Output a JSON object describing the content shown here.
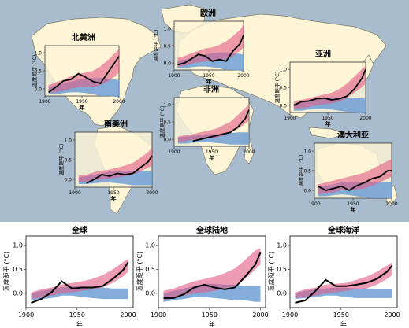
{
  "colors": {
    "ocean": "#a9bccd",
    "land": "#fdf5d6",
    "coast": "#7a7a6a",
    "natural_band": "#6e9fd6",
    "combined_band": "#e35a86",
    "observed": "#000000"
  },
  "chart_data": [
    {
      "type": "line",
      "id": "north-america",
      "title": "北美洲",
      "xlabel": "年",
      "ylabel": "温度距平 (°C)",
      "xlim": [
        1900,
        2000
      ],
      "ylim": [
        -0.2,
        1.2
      ],
      "xticks": [
        "1900",
        "1950",
        "2000"
      ],
      "yticks": [
        "0.0",
        "0.5",
        "1.0"
      ],
      "x": [
        1905,
        1915,
        1925,
        1935,
        1945,
        1955,
        1965,
        1975,
        1985,
        1995,
        2000
      ],
      "observed": [
        -0.1,
        0.05,
        0.22,
        0.26,
        0.42,
        0.32,
        0.2,
        0.15,
        0.45,
        0.75,
        0.9
      ],
      "natural": [
        [
          -0.15,
          0.05
        ],
        [
          -0.15,
          0.1
        ],
        [
          -0.12,
          0.15
        ],
        [
          -0.1,
          0.2
        ],
        [
          -0.1,
          0.25
        ],
        [
          -0.12,
          0.28
        ],
        [
          -0.15,
          0.3
        ],
        [
          -0.2,
          0.3
        ],
        [
          -0.2,
          0.28
        ],
        [
          -0.22,
          0.26
        ],
        [
          -0.25,
          0.24
        ]
      ],
      "combined": [
        [
          -0.12,
          0.1
        ],
        [
          -0.1,
          0.18
        ],
        [
          -0.05,
          0.25
        ],
        [
          0.0,
          0.35
        ],
        [
          0.05,
          0.42
        ],
        [
          0.05,
          0.45
        ],
        [
          0.05,
          0.5
        ],
        [
          0.1,
          0.62
        ],
        [
          0.2,
          0.8
        ],
        [
          0.35,
          1.0
        ],
        [
          0.45,
          1.1
        ]
      ]
    },
    {
      "type": "line",
      "id": "europe",
      "title": "欧洲",
      "xlabel": "年",
      "ylabel": "温度距平 (°C)",
      "xlim": [
        1900,
        2000
      ],
      "ylim": [
        -0.2,
        1.2
      ],
      "xticks": [
        "1900",
        "1950",
        "2000"
      ],
      "yticks": [
        "0.0",
        "0.5",
        "1.0"
      ],
      "x": [
        1905,
        1915,
        1925,
        1935,
        1945,
        1955,
        1965,
        1975,
        1985,
        1995,
        2000
      ],
      "observed": [
        -0.05,
        0.0,
        0.12,
        0.25,
        0.2,
        0.05,
        0.1,
        0.05,
        0.35,
        0.55,
        0.8
      ],
      "natural": [
        [
          -0.15,
          0.05
        ],
        [
          -0.15,
          0.1
        ],
        [
          -0.12,
          0.15
        ],
        [
          -0.1,
          0.2
        ],
        [
          -0.1,
          0.25
        ],
        [
          -0.12,
          0.28
        ],
        [
          -0.15,
          0.3
        ],
        [
          -0.2,
          0.3
        ],
        [
          -0.2,
          0.28
        ],
        [
          -0.22,
          0.26
        ],
        [
          -0.25,
          0.24
        ]
      ],
      "combined": [
        [
          -0.1,
          0.15
        ],
        [
          -0.08,
          0.2
        ],
        [
          -0.02,
          0.28
        ],
        [
          0.02,
          0.35
        ],
        [
          0.05,
          0.42
        ],
        [
          0.05,
          0.45
        ],
        [
          0.08,
          0.52
        ],
        [
          0.12,
          0.62
        ],
        [
          0.2,
          0.78
        ],
        [
          0.35,
          0.95
        ],
        [
          0.45,
          1.1
        ]
      ]
    },
    {
      "type": "line",
      "id": "asia",
      "title": "亚洲",
      "xlabel": "年",
      "ylabel": "温度距平 (°C)",
      "xlim": [
        1900,
        2000
      ],
      "ylim": [
        -0.2,
        1.2
      ],
      "xticks": [
        "1900",
        "1950",
        "2000"
      ],
      "yticks": [
        "0.0",
        "0.5",
        "1.0"
      ],
      "x": [
        1905,
        1915,
        1925,
        1935,
        1945,
        1955,
        1965,
        1975,
        1985,
        1995,
        2000
      ],
      "observed": [
        0.0,
        0.1,
        0.12,
        0.18,
        0.2,
        0.15,
        0.18,
        0.25,
        0.45,
        0.75,
        1.0
      ],
      "natural": [
        [
          -0.15,
          0.05
        ],
        [
          -0.15,
          0.08
        ],
        [
          -0.12,
          0.12
        ],
        [
          -0.1,
          0.15
        ],
        [
          -0.1,
          0.2
        ],
        [
          -0.12,
          0.22
        ],
        [
          -0.15,
          0.22
        ],
        [
          -0.18,
          0.2
        ],
        [
          -0.2,
          0.2
        ],
        [
          -0.22,
          0.2
        ],
        [
          -0.22,
          0.18
        ]
      ],
      "combined": [
        [
          -0.1,
          0.12
        ],
        [
          -0.08,
          0.15
        ],
        [
          -0.05,
          0.2
        ],
        [
          0.0,
          0.25
        ],
        [
          0.03,
          0.3
        ],
        [
          0.05,
          0.35
        ],
        [
          0.1,
          0.45
        ],
        [
          0.2,
          0.6
        ],
        [
          0.35,
          0.8
        ],
        [
          0.5,
          1.0
        ],
        [
          0.6,
          1.1
        ]
      ]
    },
    {
      "type": "line",
      "id": "africa",
      "title": "非洲",
      "xlabel": "年",
      "ylabel": "温度距平 (°C)",
      "xlim": [
        1900,
        2000
      ],
      "ylim": [
        -0.2,
        1.2
      ],
      "xticks": [
        "1900",
        "1950",
        "2000"
      ],
      "yticks": [
        "0.0",
        "0.5",
        "1.0"
      ],
      "x": [
        1905,
        1915,
        1925,
        1935,
        1945,
        1955,
        1965,
        1975,
        1985,
        1995,
        2000
      ],
      "observed": [
        null,
        null,
        -0.05,
        0.0,
        0.05,
        0.1,
        0.15,
        0.2,
        0.35,
        0.6,
        0.85
      ],
      "natural": [
        [
          -0.12,
          0.05
        ],
        [
          -0.12,
          0.08
        ],
        [
          -0.1,
          0.1
        ],
        [
          -0.08,
          0.12
        ],
        [
          -0.08,
          0.15
        ],
        [
          -0.1,
          0.15
        ],
        [
          -0.12,
          0.15
        ],
        [
          -0.15,
          0.18
        ],
        [
          -0.15,
          0.2
        ],
        [
          -0.15,
          0.2
        ],
        [
          -0.15,
          0.2
        ]
      ],
      "combined": [
        [
          -0.08,
          0.08
        ],
        [
          -0.05,
          0.12
        ],
        [
          -0.02,
          0.15
        ],
        [
          0.0,
          0.2
        ],
        [
          0.02,
          0.25
        ],
        [
          0.05,
          0.3
        ],
        [
          0.1,
          0.4
        ],
        [
          0.2,
          0.5
        ],
        [
          0.3,
          0.7
        ],
        [
          0.45,
          0.9
        ],
        [
          0.55,
          1.0
        ]
      ]
    },
    {
      "type": "line",
      "id": "south-america",
      "title": "南美洲",
      "xlabel": "年",
      "ylabel": "温度距平 (°C)",
      "xlim": [
        1900,
        2000
      ],
      "ylim": [
        -0.2,
        1.2
      ],
      "xticks": [
        "1900",
        "1950",
        "2000"
      ],
      "yticks": [
        "0.0",
        "0.5",
        "1.0"
      ],
      "x": [
        1905,
        1915,
        1925,
        1935,
        1945,
        1955,
        1965,
        1975,
        1985,
        1995,
        2000
      ],
      "observed": [
        null,
        -0.1,
        0.0,
        0.12,
        0.08,
        0.15,
        0.12,
        0.15,
        0.3,
        0.45,
        0.6
      ],
      "natural": [
        [
          -0.12,
          0.05
        ],
        [
          -0.12,
          0.08
        ],
        [
          -0.1,
          0.12
        ],
        [
          -0.08,
          0.15
        ],
        [
          -0.08,
          0.2
        ],
        [
          -0.1,
          0.2
        ],
        [
          -0.12,
          0.22
        ],
        [
          -0.15,
          0.22
        ],
        [
          -0.15,
          0.22
        ],
        [
          -0.15,
          0.2
        ],
        [
          -0.15,
          0.2
        ]
      ],
      "combined": [
        [
          -0.08,
          0.1
        ],
        [
          -0.05,
          0.12
        ],
        [
          -0.02,
          0.18
        ],
        [
          0.0,
          0.22
        ],
        [
          0.02,
          0.25
        ],
        [
          0.05,
          0.3
        ],
        [
          0.08,
          0.35
        ],
        [
          0.12,
          0.42
        ],
        [
          0.2,
          0.55
        ],
        [
          0.3,
          0.7
        ],
        [
          0.35,
          0.8
        ]
      ]
    },
    {
      "type": "line",
      "id": "australia",
      "title": "澳大利亚",
      "xlabel": "年",
      "ylabel": "温度距平 (°C)",
      "xlim": [
        1900,
        2000
      ],
      "ylim": [
        -0.2,
        1.2
      ],
      "xticks": [
        "1900",
        "1950",
        "2000"
      ],
      "yticks": [
        "0.0",
        "0.5",
        "1.0"
      ],
      "x": [
        1905,
        1915,
        1925,
        1935,
        1945,
        1955,
        1965,
        1975,
        1985,
        1995,
        2000
      ],
      "observed": [
        0.1,
        0.0,
        0.05,
        0.1,
        0.0,
        0.12,
        0.2,
        0.3,
        0.35,
        0.5,
        0.5
      ],
      "natural": [
        [
          -0.15,
          0.1
        ],
        [
          -0.15,
          0.12
        ],
        [
          -0.12,
          0.15
        ],
        [
          -0.1,
          0.2
        ],
        [
          -0.12,
          0.2
        ],
        [
          -0.15,
          0.22
        ],
        [
          -0.18,
          0.2
        ],
        [
          -0.2,
          0.2
        ],
        [
          -0.2,
          0.2
        ],
        [
          -0.2,
          0.2
        ],
        [
          -0.2,
          0.2
        ]
      ],
      "combined": [
        [
          -0.1,
          0.15
        ],
        [
          -0.08,
          0.2
        ],
        [
          -0.05,
          0.25
        ],
        [
          0.0,
          0.3
        ],
        [
          0.0,
          0.35
        ],
        [
          0.02,
          0.4
        ],
        [
          0.05,
          0.45
        ],
        [
          0.12,
          0.55
        ],
        [
          0.2,
          0.65
        ],
        [
          0.3,
          0.75
        ],
        [
          0.35,
          0.8
        ]
      ]
    },
    {
      "type": "line",
      "id": "global",
      "title": "全球",
      "xlabel": "年",
      "ylabel": "温度距平 (°C)",
      "xlim": [
        1900,
        2005
      ],
      "ylim": [
        -0.3,
        1.2
      ],
      "xticks": [
        "1900",
        "1950",
        "2000"
      ],
      "yticks": [
        "0.0",
        "0.5",
        "1.0"
      ],
      "x": [
        1905,
        1915,
        1925,
        1935,
        1945,
        1955,
        1965,
        1975,
        1985,
        1995,
        2000
      ],
      "observed": [
        -0.2,
        -0.12,
        0.02,
        0.25,
        0.1,
        0.12,
        0.12,
        0.15,
        0.3,
        0.48,
        0.65
      ],
      "natural": [
        [
          -0.15,
          0.0
        ],
        [
          -0.12,
          0.05
        ],
        [
          -0.1,
          0.08
        ],
        [
          -0.05,
          0.12
        ],
        [
          -0.05,
          0.15
        ],
        [
          -0.08,
          0.15
        ],
        [
          -0.1,
          0.12
        ],
        [
          -0.12,
          0.12
        ],
        [
          -0.12,
          0.1
        ],
        [
          -0.12,
          0.1
        ],
        [
          -0.12,
          0.1
        ]
      ],
      "combined": [
        [
          -0.12,
          0.02
        ],
        [
          -0.08,
          0.08
        ],
        [
          -0.05,
          0.12
        ],
        [
          0.0,
          0.18
        ],
        [
          0.02,
          0.22
        ],
        [
          0.05,
          0.25
        ],
        [
          0.08,
          0.3
        ],
        [
          0.12,
          0.38
        ],
        [
          0.22,
          0.5
        ],
        [
          0.35,
          0.65
        ],
        [
          0.45,
          0.72
        ]
      ]
    },
    {
      "type": "line",
      "id": "global-land",
      "title": "全球陆地",
      "xlabel": "年",
      "ylabel": "温度距平 (°C)",
      "xlim": [
        1900,
        2005
      ],
      "ylim": [
        -0.3,
        1.2
      ],
      "xticks": [
        "1900",
        "1950",
        "2000"
      ],
      "yticks": [
        "0.0",
        "0.5",
        "1.0"
      ],
      "x": [
        1905,
        1915,
        1925,
        1935,
        1945,
        1955,
        1965,
        1975,
        1985,
        1995,
        2000
      ],
      "observed": [
        -0.1,
        -0.1,
        -0.02,
        0.12,
        0.18,
        0.12,
        0.08,
        0.12,
        0.35,
        0.6,
        0.85
      ],
      "natural": [
        [
          -0.18,
          0.0
        ],
        [
          -0.15,
          0.05
        ],
        [
          -0.12,
          0.1
        ],
        [
          -0.08,
          0.15
        ],
        [
          -0.08,
          0.2
        ],
        [
          -0.1,
          0.2
        ],
        [
          -0.12,
          0.18
        ],
        [
          -0.15,
          0.18
        ],
        [
          -0.15,
          0.15
        ],
        [
          -0.18,
          0.15
        ],
        [
          -0.18,
          0.15
        ]
      ],
      "combined": [
        [
          -0.15,
          0.05
        ],
        [
          -0.1,
          0.1
        ],
        [
          -0.05,
          0.18
        ],
        [
          0.0,
          0.25
        ],
        [
          0.02,
          0.3
        ],
        [
          0.05,
          0.35
        ],
        [
          0.1,
          0.42
        ],
        [
          0.15,
          0.52
        ],
        [
          0.3,
          0.7
        ],
        [
          0.5,
          0.9
        ],
        [
          0.6,
          0.95
        ]
      ]
    },
    {
      "type": "line",
      "id": "global-ocean",
      "title": "全球海洋",
      "xlabel": "年",
      "ylabel": "温度距平 (°C)",
      "xlim": [
        1900,
        2005
      ],
      "ylim": [
        -0.3,
        1.2
      ],
      "xticks": [
        "1900",
        "1950",
        "2000"
      ],
      "yticks": [
        "0.0",
        "0.5",
        "1.0"
      ],
      "x": [
        1905,
        1915,
        1925,
        1935,
        1945,
        1955,
        1965,
        1975,
        1985,
        1995,
        2000
      ],
      "observed": [
        -0.2,
        -0.15,
        0.05,
        0.28,
        0.15,
        0.15,
        0.18,
        0.22,
        0.3,
        0.45,
        0.58
      ],
      "natural": [
        [
          -0.12,
          0.0
        ],
        [
          -0.1,
          0.05
        ],
        [
          -0.08,
          0.08
        ],
        [
          -0.05,
          0.1
        ],
        [
          -0.05,
          0.12
        ],
        [
          -0.08,
          0.12
        ],
        [
          -0.1,
          0.1
        ],
        [
          -0.1,
          0.1
        ],
        [
          -0.1,
          0.08
        ],
        [
          -0.1,
          0.08
        ],
        [
          -0.1,
          0.08
        ]
      ],
      "combined": [
        [
          -0.1,
          0.02
        ],
        [
          -0.08,
          0.08
        ],
        [
          -0.05,
          0.12
        ],
        [
          0.0,
          0.18
        ],
        [
          0.02,
          0.2
        ],
        [
          0.05,
          0.22
        ],
        [
          0.08,
          0.28
        ],
        [
          0.1,
          0.35
        ],
        [
          0.18,
          0.45
        ],
        [
          0.3,
          0.58
        ],
        [
          0.38,
          0.65
        ]
      ]
    }
  ]
}
